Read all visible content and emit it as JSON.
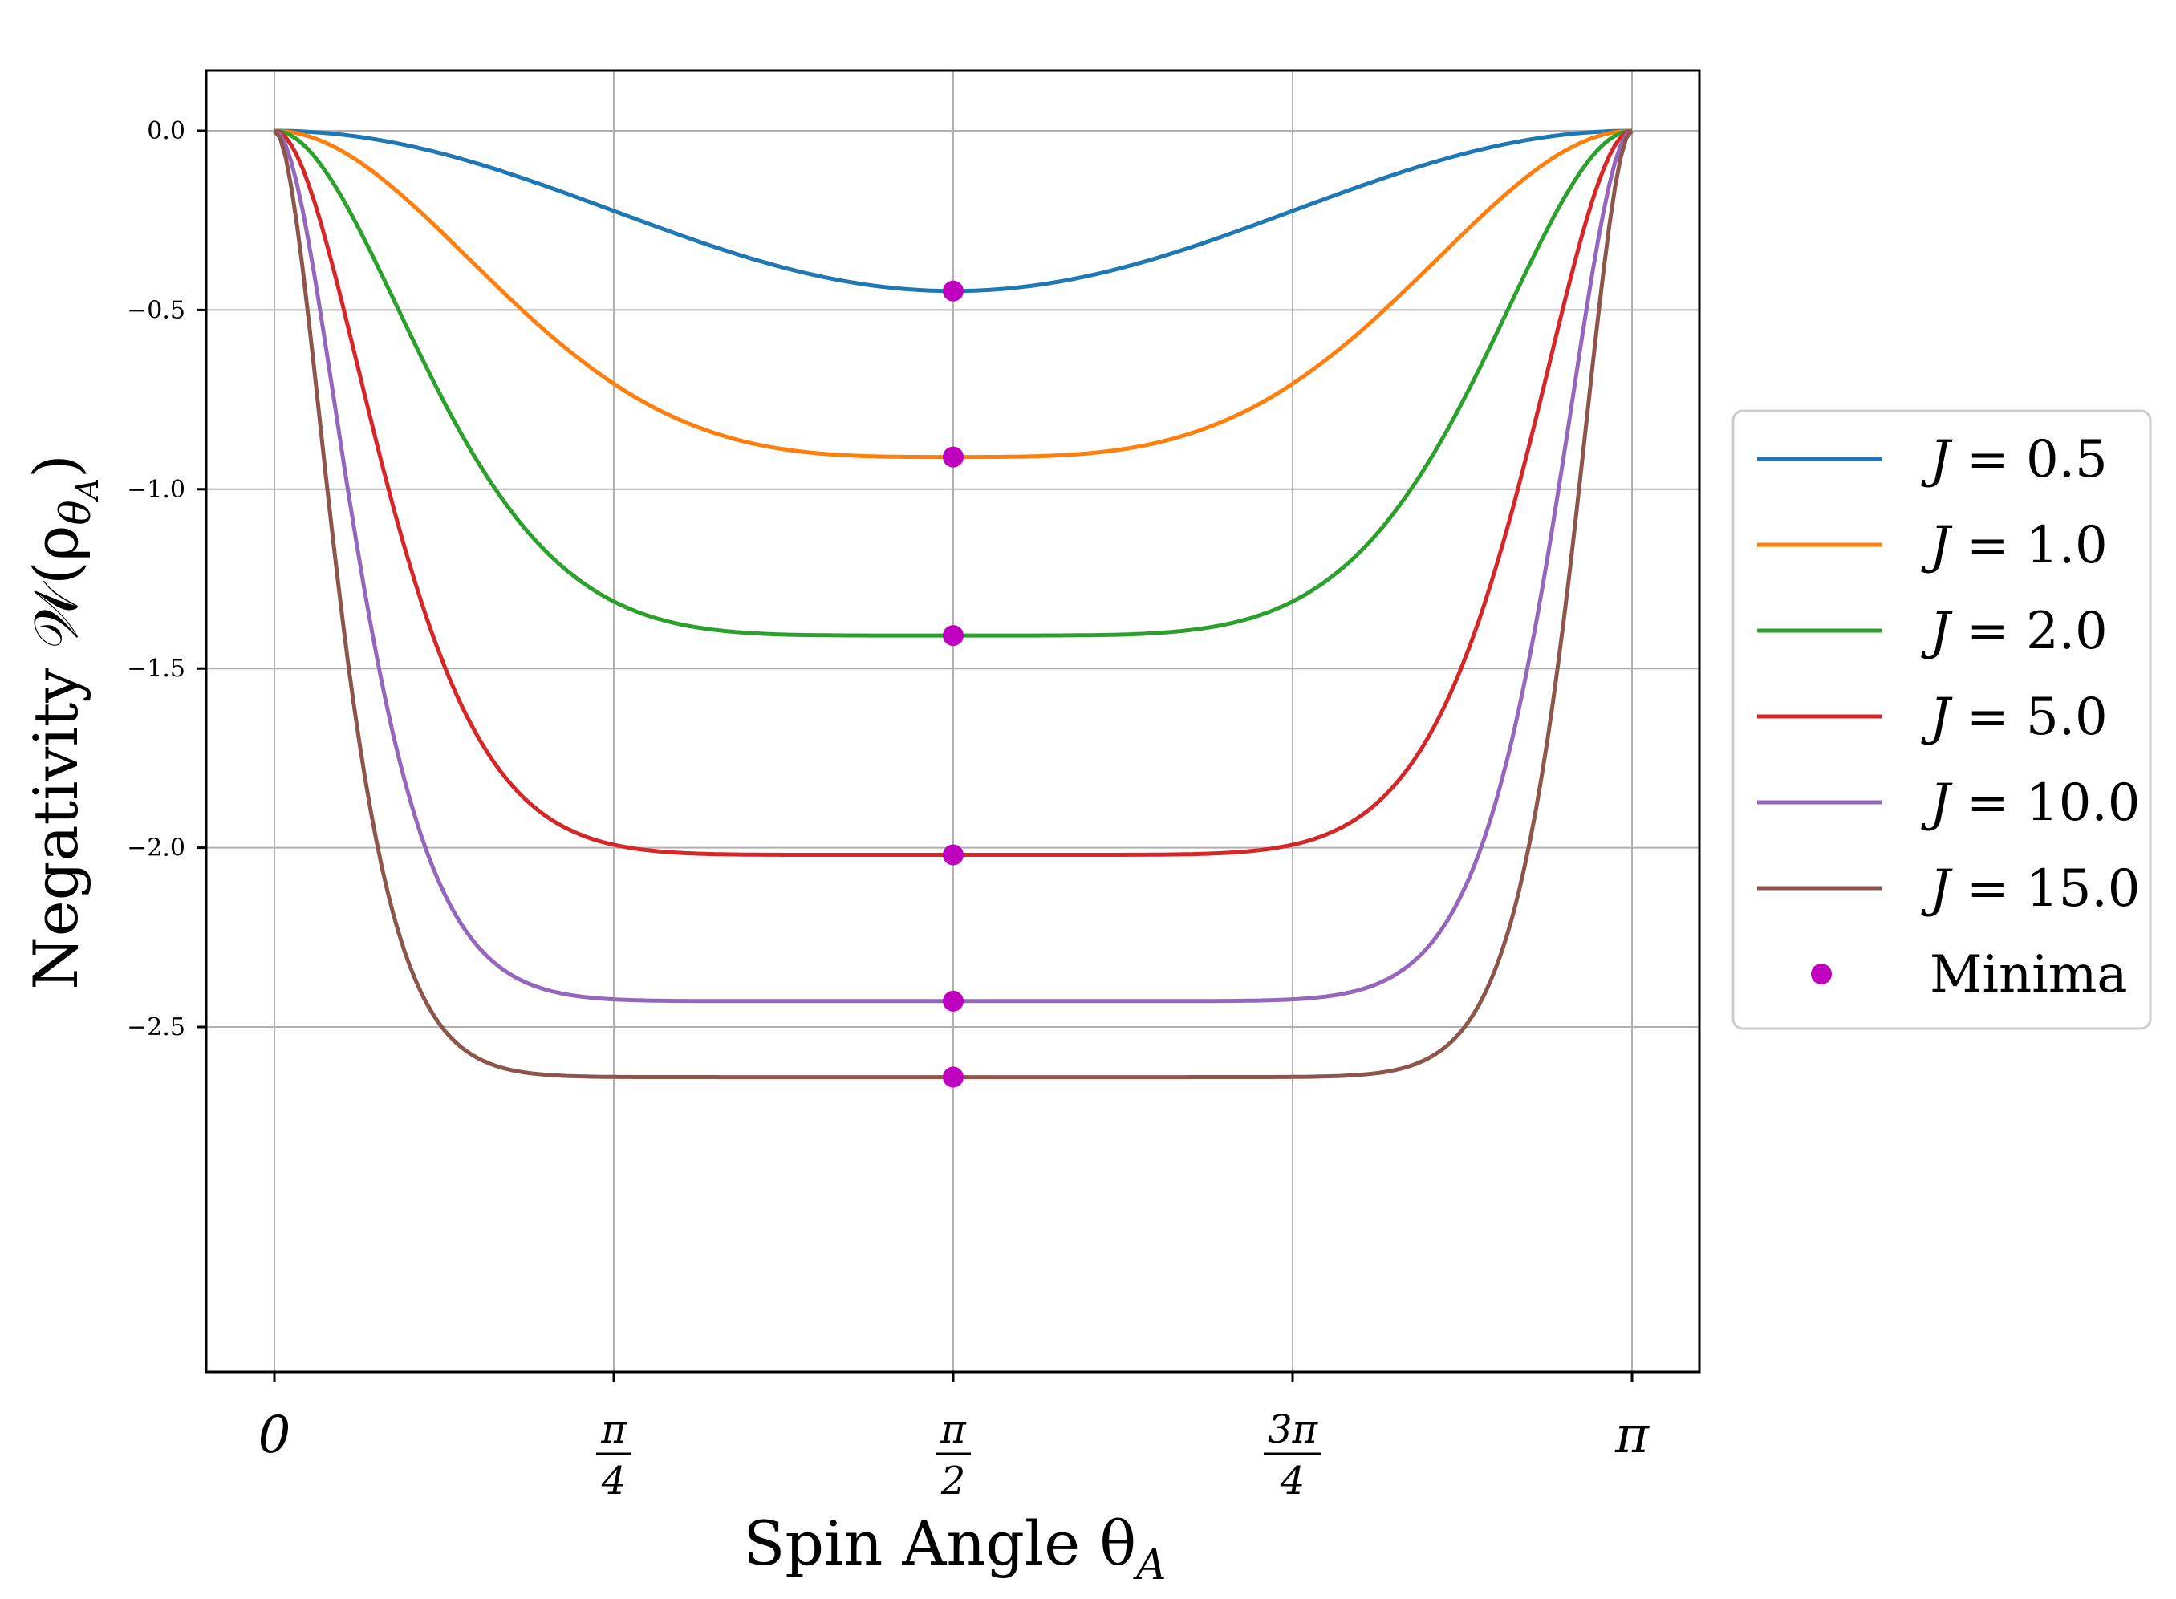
{
  "chart_data": {
    "type": "line",
    "title": "",
    "xlabel": "Spin Angle θ",
    "xlabel_sub": "A",
    "ylabel": "Negativity 𝒲(ρ",
    "ylabel_sub": "θ",
    "ylabel_subsub": "A",
    "ylabel_close": ")",
    "xlim": [
      0,
      3.14159265
    ],
    "ylim": [
      -2.77,
      0.13
    ],
    "grid": true,
    "legend_position": "outside-right",
    "x_ticks": [
      {
        "value": 0,
        "num": "0",
        "den": ""
      },
      {
        "value": 0.78539816,
        "num": "π",
        "den": "4"
      },
      {
        "value": 1.57079633,
        "num": "π",
        "den": "2"
      },
      {
        "value": 2.35619449,
        "num": "3π",
        "den": "4"
      },
      {
        "value": 3.14159265,
        "num": "π",
        "den": ""
      }
    ],
    "y_ticks": [
      {
        "value": 0,
        "label": "0.0"
      },
      {
        "value": -0.5,
        "label": "−0.5"
      },
      {
        "value": -1.0,
        "label": "−1.0"
      },
      {
        "value": -1.5,
        "label": "−1.5"
      },
      {
        "value": -2.0,
        "label": "−2.0"
      },
      {
        "value": -2.5,
        "label": "−2.5"
      }
    ],
    "series": [
      {
        "name": "J = 0.5",
        "j": "0.5",
        "color": "#1f77b4",
        "minimum": -0.447
      },
      {
        "name": "J = 1.0",
        "j": "1.0",
        "color": "#ff7f0e",
        "minimum": -0.91
      },
      {
        "name": "J = 2.0",
        "j": "2.0",
        "color": "#2ca02c",
        "minimum": -1.408
      },
      {
        "name": "J = 5.0",
        "j": "5.0",
        "color": "#d62728",
        "minimum": -2.02
      },
      {
        "name": "J = 10.0",
        "j": "10.0",
        "color": "#9467bd",
        "minimum": -2.428
      },
      {
        "name": "J = 15.0",
        "j": "15.0",
        "color": "#8c564b",
        "minimum": -2.64
      }
    ],
    "minima": {
      "name": "Minima",
      "color": "#bf00bf",
      "x": 1.57079633,
      "y": [
        -0.447,
        -0.91,
        -1.408,
        -2.02,
        -2.428,
        -2.64
      ]
    }
  }
}
